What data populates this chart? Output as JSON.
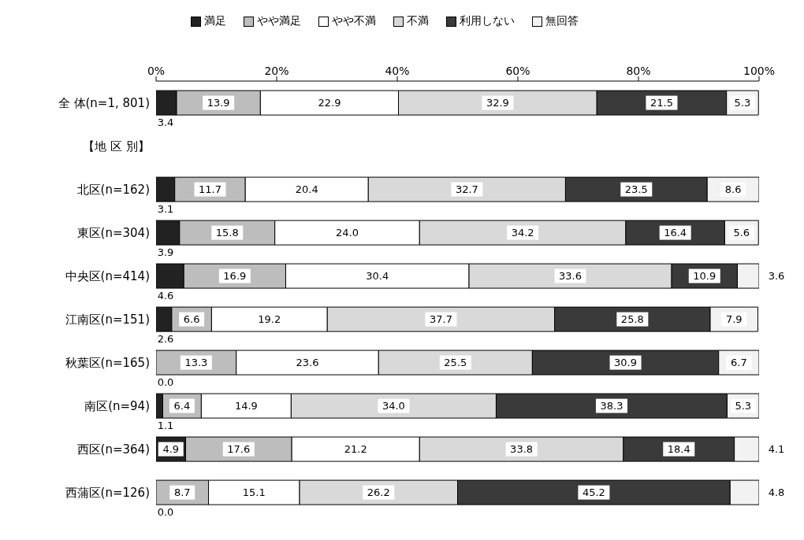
{
  "chart_data": {
    "type": "bar",
    "orientation": "horizontal",
    "stacked": true,
    "categories": [
      "全 体(n=1, 801)",
      "【地 区 別】",
      "北区(n=162)",
      "東区(n=304)",
      "中央区(n=414)",
      "江南区(n=151)",
      "秋葉区(n=165)",
      "南区(n=94)",
      "西区(n=364)",
      "西蒲区(n=126)"
    ],
    "series": [
      {
        "name": "満足",
        "color": "#222222",
        "values": [
          3.4,
          null,
          3.1,
          3.9,
          4.6,
          2.6,
          0.0,
          1.1,
          4.9,
          0.0
        ]
      },
      {
        "name": "やや満足",
        "color": "#bdbdbd",
        "values": [
          13.9,
          null,
          11.7,
          15.8,
          16.9,
          6.6,
          13.3,
          6.4,
          17.6,
          8.7
        ]
      },
      {
        "name": "やや不満",
        "color": "#ffffff",
        "values": [
          22.9,
          null,
          20.4,
          24.0,
          30.4,
          19.2,
          23.6,
          14.9,
          21.2,
          15.1
        ]
      },
      {
        "name": "不満",
        "color": "#d9d9d9",
        "values": [
          32.9,
          null,
          32.7,
          34.2,
          33.6,
          37.7,
          25.5,
          34.0,
          33.8,
          26.2
        ]
      },
      {
        "name": "利用しない",
        "color": "#3a3a3a",
        "values": [
          21.5,
          null,
          23.5,
          16.4,
          10.9,
          25.8,
          30.9,
          38.3,
          18.4,
          45.2
        ]
      },
      {
        "name": "無回答",
        "color": "#f2f2f2",
        "values": [
          5.3,
          null,
          8.6,
          5.6,
          3.6,
          7.9,
          6.7,
          5.3,
          4.1,
          4.8
        ]
      }
    ],
    "xlim": [
      0,
      100
    ],
    "xticks": [
      {
        "value": 0,
        "label": "0%"
      },
      {
        "value": 20,
        "label": "20%"
      },
      {
        "value": 40,
        "label": "40%"
      },
      {
        "value": 60,
        "label": "60%"
      },
      {
        "value": 80,
        "label": "80%"
      },
      {
        "value": 100,
        "label": "100%"
      }
    ],
    "value_labels": [
      [
        "3.4",
        "13.9",
        "22.9",
        "32.9",
        "21.5",
        "5.3"
      ],
      [
        null,
        null,
        null,
        null,
        null,
        null
      ],
      [
        "3.1",
        "11.7",
        "20.4",
        "32.7",
        "23.5",
        "8.6"
      ],
      [
        "3.9",
        "15.8",
        "24.0",
        "34.2",
        "16.4",
        "5.6"
      ],
      [
        "4.6",
        "16.9",
        "30.4",
        "33.6",
        "10.9",
        "3.6"
      ],
      [
        "2.6",
        "6.6",
        "19.2",
        "37.7",
        "25.8",
        "7.9"
      ],
      [
        "0.0",
        "13.3",
        "23.6",
        "25.5",
        "30.9",
        "6.7"
      ],
      [
        "1.1",
        "6.4",
        "14.9",
        "34.0",
        "38.3",
        "5.3"
      ],
      [
        "4.9",
        "17.6",
        "21.2",
        "33.8",
        "18.4",
        "4.1"
      ],
      [
        "0.0",
        "8.7",
        "15.1",
        "26.2",
        "45.2",
        "4.8"
      ]
    ],
    "grid": false,
    "legend": "top"
  }
}
